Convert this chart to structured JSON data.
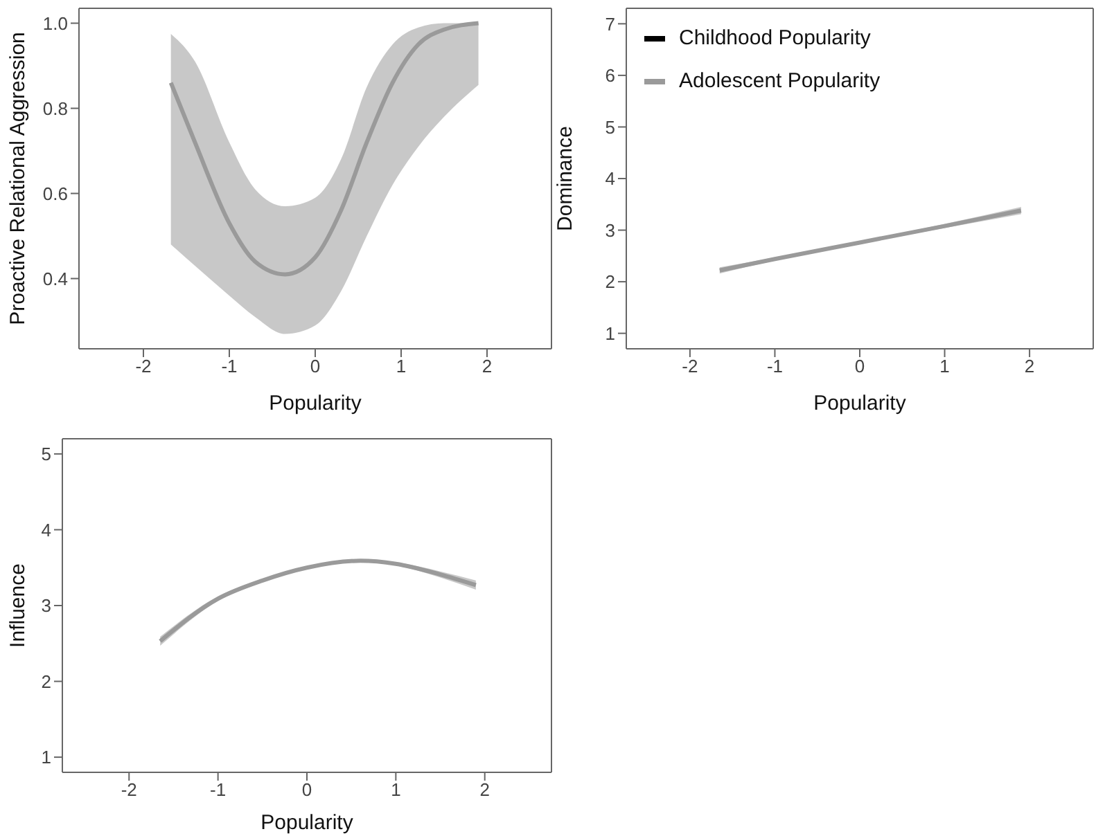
{
  "chart_data": [
    {
      "type": "line",
      "xlabel": "Popularity",
      "ylabel": "Proactive Relational Aggression",
      "x": [
        -1.68,
        -1.4,
        -1.0,
        -0.7,
        -0.35,
        0,
        0.3,
        0.6,
        0.9,
        1.2,
        1.5,
        1.9
      ],
      "xlim": [
        -2.75,
        2.75
      ],
      "xticks": [
        -2,
        -1,
        0,
        1,
        2
      ],
      "ylim": [
        0.235,
        1.035
      ],
      "yticks": [
        {
          "value": 0.4,
          "label": "0.4"
        },
        {
          "value": 0.6,
          "label": "0.6"
        },
        {
          "value": 0.8,
          "label": "0.8"
        },
        {
          "value": 1.0,
          "label": "1.0"
        }
      ],
      "grid": false,
      "series": [
        {
          "color": "#9a9a9a",
          "values": [
            0.86,
            0.72,
            0.53,
            0.44,
            0.41,
            0.45,
            0.56,
            0.72,
            0.86,
            0.95,
            0.985,
            1.0
          ],
          "lower": [
            0.48,
            0.43,
            0.36,
            0.31,
            0.27,
            0.29,
            0.37,
            0.5,
            0.62,
            0.71,
            0.78,
            0.855
          ],
          "upper": [
            0.975,
            0.91,
            0.72,
            0.61,
            0.57,
            0.59,
            0.68,
            0.85,
            0.95,
            0.99,
            1.0,
            1.0
          ]
        }
      ]
    },
    {
      "type": "line",
      "xlabel": "Popularity",
      "ylabel": "Dominance",
      "x": [
        -1.65,
        -1,
        0,
        1,
        1.9
      ],
      "xlim": [
        -2.75,
        2.75
      ],
      "xticks": [
        -2,
        -1,
        0,
        1,
        2
      ],
      "ylim": [
        0.7,
        7.3
      ],
      "yticks": [
        1,
        2,
        3,
        4,
        5,
        6,
        7
      ],
      "grid": false,
      "legend": "top left",
      "series": [
        {
          "name": "Childhood Popularity",
          "color": "#000000",
          "values": [
            null,
            null,
            null,
            null,
            null
          ]
        },
        {
          "name": "Adolescent Popularity",
          "color": "#9a9a9a",
          "values": [
            2.22,
            2.44,
            2.76,
            3.08,
            3.38
          ],
          "lower": [
            2.16,
            2.41,
            2.74,
            3.04,
            3.31
          ],
          "upper": [
            2.28,
            2.47,
            2.78,
            3.12,
            3.45
          ]
        }
      ]
    },
    {
      "type": "line",
      "xlabel": "Popularity",
      "ylabel": "Influence",
      "x": [
        -1.65,
        -1,
        -0.5,
        0,
        0.6,
        1,
        1.5,
        1.9
      ],
      "xlim": [
        -2.75,
        2.75
      ],
      "xticks": [
        -2,
        -1,
        0,
        1,
        2
      ],
      "ylim": [
        0.8,
        5.2
      ],
      "yticks": [
        1,
        2,
        3,
        4,
        5
      ],
      "grid": false,
      "series": [
        {
          "color": "#9a9a9a",
          "values": [
            2.53,
            3.09,
            3.33,
            3.5,
            3.59,
            3.55,
            3.41,
            3.27
          ],
          "lower": [
            2.47,
            3.06,
            3.31,
            3.49,
            3.58,
            3.53,
            3.37,
            3.21
          ],
          "upper": [
            2.59,
            3.12,
            3.35,
            3.51,
            3.6,
            3.57,
            3.45,
            3.33
          ]
        }
      ]
    }
  ]
}
